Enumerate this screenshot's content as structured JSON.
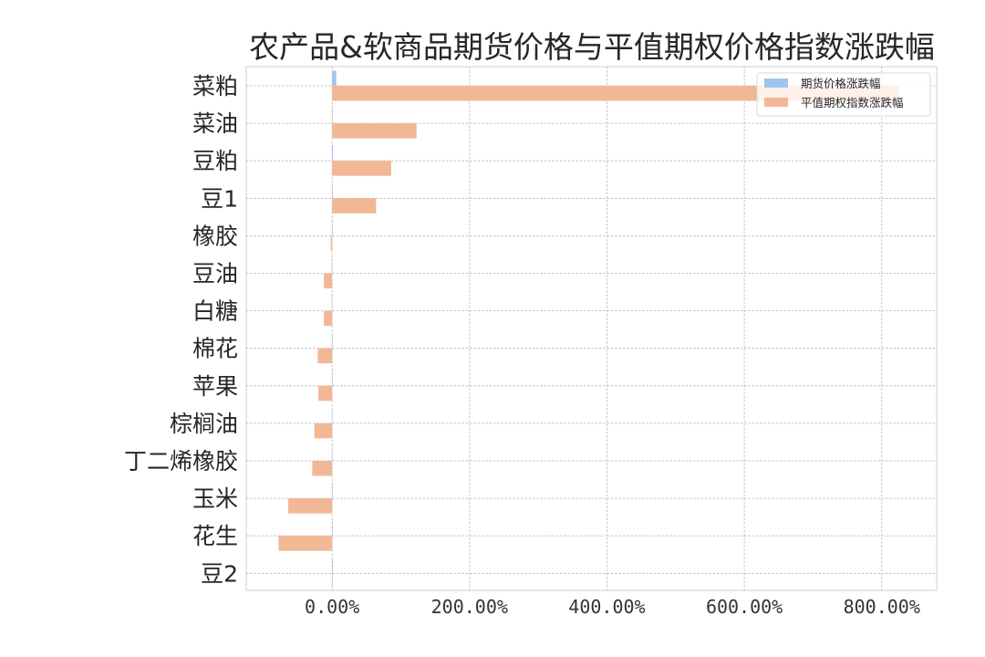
{
  "chart_data": {
    "type": "bar",
    "orientation": "horizontal",
    "title": "农产品&软商品期货价格与平值期权价格指数涨跌幅",
    "xlabel": "",
    "ylabel": "",
    "categories": [
      "菜粕",
      "菜油",
      "豆粕",
      "豆1",
      "橡胶",
      "豆油",
      "白糖",
      "棉花",
      "苹果",
      "棕榈油",
      "丁二烯橡胶",
      "玉米",
      "花生",
      "豆2"
    ],
    "series": [
      {
        "name": "期货价格涨跌幅",
        "color": "#a1c4ee",
        "values": [
          6.0,
          0.6,
          1.2,
          0.4,
          0.2,
          -0.6,
          -0.5,
          0.4,
          0.3,
          -0.3,
          -0.4,
          0.3,
          0.4,
          1.0
        ]
      },
      {
        "name": "平值期权指数涨跌幅",
        "color": "#f2b895",
        "values": [
          825.0,
          123.0,
          86.0,
          64.0,
          -2.0,
          -12.0,
          -12.0,
          -21.0,
          -20.0,
          -26.0,
          -29.0,
          -64.0,
          -78.0,
          0.0
        ]
      }
    ],
    "xlim": [
      -125,
      880
    ],
    "xticks": [
      0,
      200,
      400,
      600,
      800
    ],
    "xtick_labels": [
      "0.00%",
      "200.00%",
      "400.00%",
      "600.00%",
      "800.00%"
    ],
    "grid": true,
    "legend_position": "top-right"
  }
}
